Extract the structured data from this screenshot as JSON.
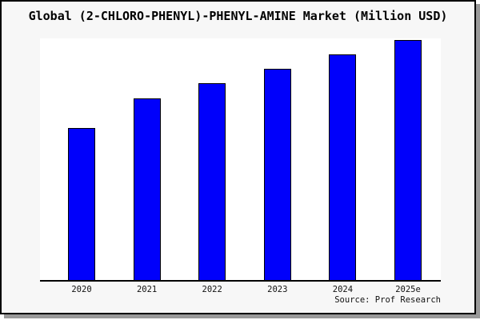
{
  "chart": {
    "colors": {
      "bar_fill": "#0000fb",
      "bar_border": "#000000",
      "plot_background": "#ffffff",
      "panel_background": "#f7f7f7",
      "panel_border": "#000000",
      "shadow": "#999999",
      "text": "#000000"
    }
  },
  "chart_data": {
    "type": "bar",
    "title": "Global (2-CHLORO-PHENYL)-PHENYL-AMINE Market (Million USD)",
    "categories": [
      "2020",
      "2021",
      "2022",
      "2023",
      "2024",
      "2025e"
    ],
    "values": [
      0.63,
      0.75,
      0.815,
      0.875,
      0.935,
      0.993
    ],
    "value_note": "y-axis unlabeled in chart; values are relative bar heights (fraction of plot height)",
    "xlabel": "",
    "ylabel": "",
    "ylim": [
      0,
      1
    ],
    "grid": false,
    "legend": "none",
    "annotations": [
      "Source: Prof Research"
    ]
  }
}
